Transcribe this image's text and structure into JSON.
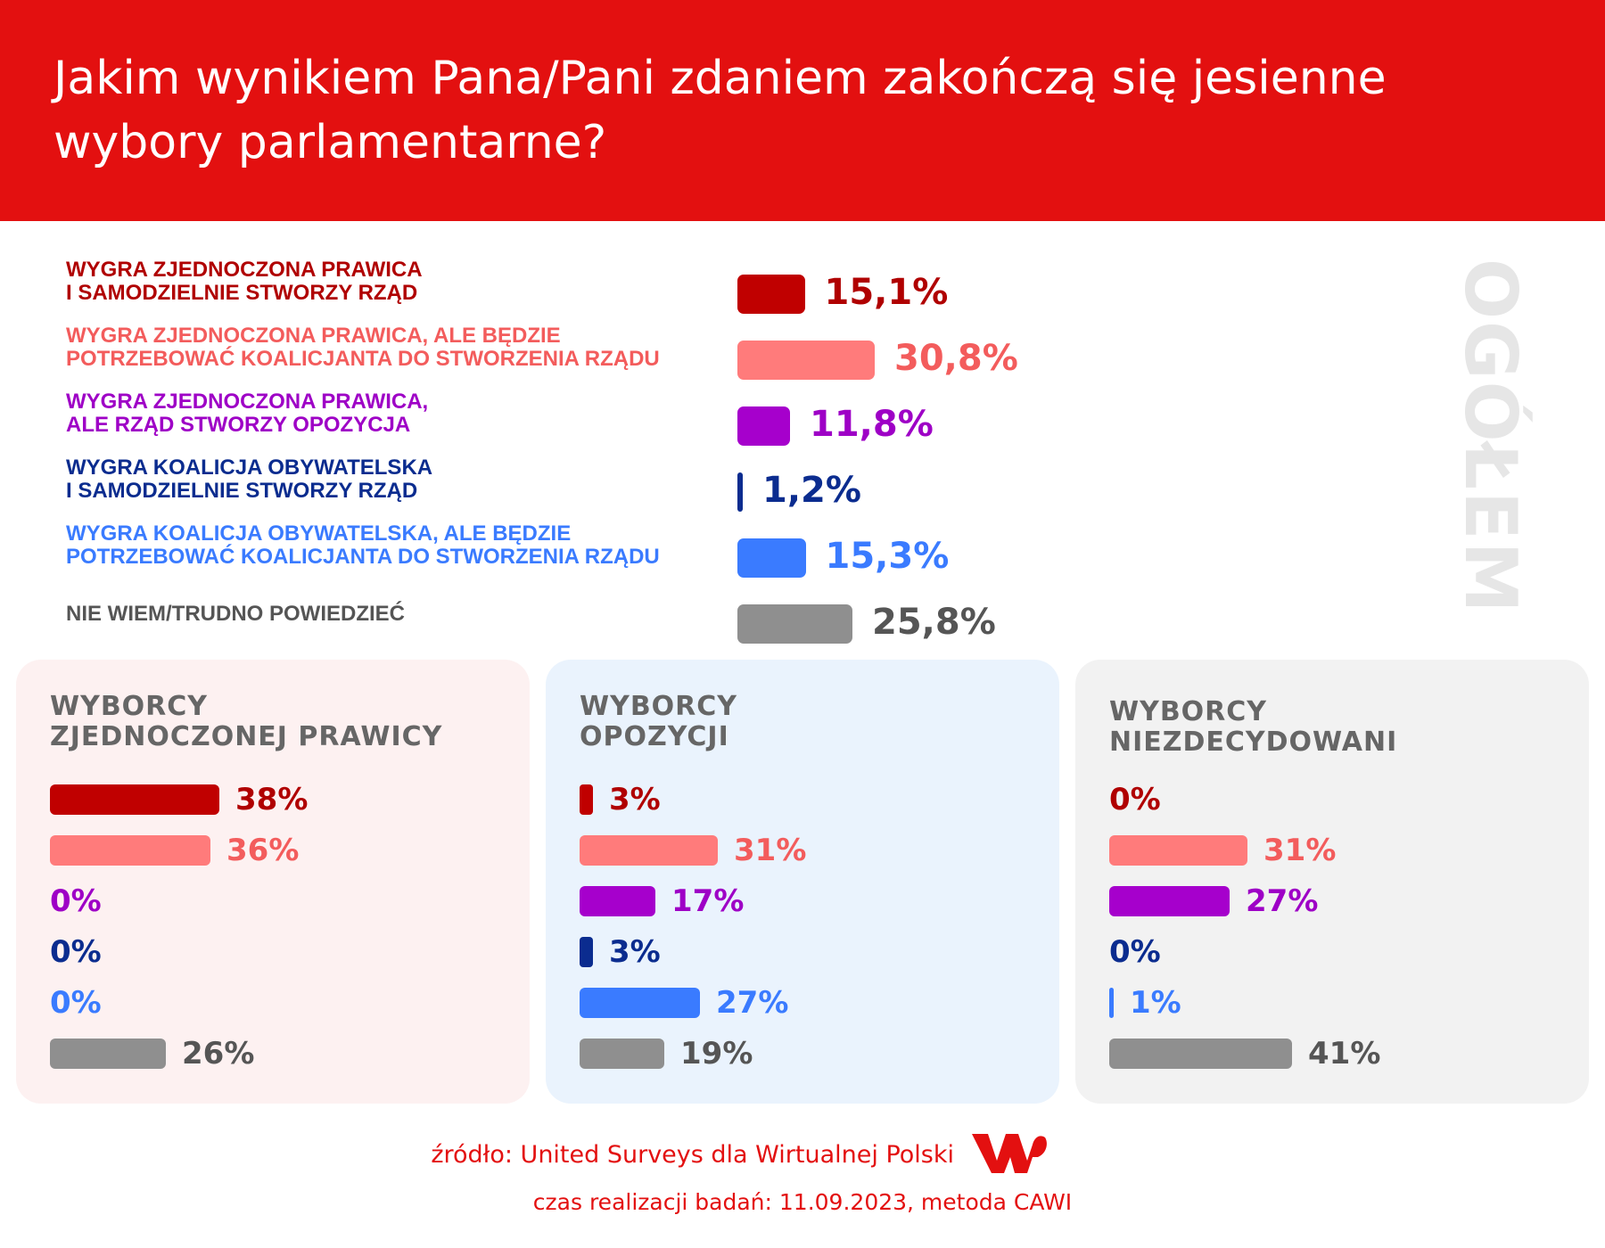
{
  "header": {
    "title": "Jakim wynikiem Pana/Pani zdaniem zakończą się jesienne wybory parlamentarne?"
  },
  "colors": {
    "header_bg": "#e31010",
    "cat": [
      "#c00000",
      "#ff7b7b",
      "#a600cc",
      "#0b2c8f",
      "#3a7bff",
      "#8f8f8f"
    ],
    "label": [
      "#b00000",
      "#f35c5c",
      "#9e00c6",
      "#0b2c8f",
      "#3a7bff",
      "#555555"
    ],
    "value": [
      "#b00000",
      "#f35c5c",
      "#9e00c6",
      "#0b2c8f",
      "#3a7bff",
      "#555555"
    ]
  },
  "overall_label": "OGÓŁEM",
  "chart_data": [
    {
      "type": "bar",
      "title": "OGÓŁEM",
      "categories": [
        "WYGRA ZJEDNOCZONA PRAWICA\nI SAMODZIELNIE STWORZY RZĄD",
        "WYGRA ZJEDNOCZONA PRAWICA, ALE BĘDZIE\nPOTRZEBOWAĆ KOALICJANTA DO STWORZENIA RZĄDU",
        "WYGRA ZJEDNOCZONA PRAWICA,\nALE RZĄD STWORZY OPOZYCJA",
        "WYGRA KOALICJA OBYWATELSKA\nI SAMODZIELNIE STWORZY RZĄD",
        "WYGRA KOALICJA OBYWATELSKA, ALE BĘDZIE\nPOTRZEBOWAĆ KOALICJANTA DO STWORZENIA RZĄDU",
        "NIE WIEM/TRUDNO POWIEDZIEĆ"
      ],
      "values": [
        15.1,
        30.8,
        11.8,
        1.2,
        15.3,
        25.8
      ],
      "labels": [
        "15,1%",
        "30,8%",
        "11,8%",
        "1,2%",
        "15,3%",
        "25,8%"
      ]
    },
    {
      "type": "bar",
      "title": "WYBORCY\nZJEDNOCZONEJ PRAWICY",
      "values": [
        38,
        36,
        0,
        0,
        0,
        26
      ],
      "labels": [
        "38%",
        "36%",
        "0%",
        "0%",
        "0%",
        "26%"
      ]
    },
    {
      "type": "bar",
      "title": "WYBORCY\nOPOZYCJI",
      "values": [
        3,
        31,
        17,
        3,
        27,
        19
      ],
      "labels": [
        "3%",
        "31%",
        "17%",
        "3%",
        "27%",
        "19%"
      ]
    },
    {
      "type": "bar",
      "title": "WYBORCY\nNIEZDECYDOWANI",
      "values": [
        0,
        31,
        27,
        0,
        1,
        41
      ],
      "labels": [
        "0%",
        "31%",
        "27%",
        "0%",
        "1%",
        "41%"
      ]
    }
  ],
  "panels_bg": [
    "#fdf1f1",
    "#eaf3fd",
    "#f2f2f2"
  ],
  "footer": {
    "source": "źródło: United Surveys dla Wirtualnej Polski",
    "date": "czas realizacji badań: 11.09.2023, metoda CAWI",
    "logo_text": "WP"
  }
}
